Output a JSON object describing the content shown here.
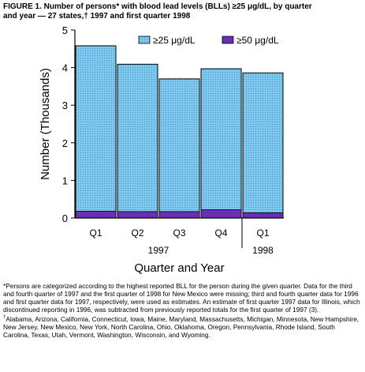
{
  "figure": {
    "title_line1": "FIGURE 1. Number of persons* with blood lead levels (BLLs) ≥25 μg/dL, by quarter",
    "title_line2": "and year — 27 states,† 1997 and first quarter 1998"
  },
  "chart_data": {
    "type": "bar",
    "stacked": true,
    "categories": [
      "Q1",
      "Q2",
      "Q3",
      "Q4",
      "Q1"
    ],
    "year_groups": [
      {
        "label": "1997",
        "categories": [
          "Q1",
          "Q2",
          "Q3",
          "Q4"
        ]
      },
      {
        "label": "1998",
        "categories": [
          "Q1"
        ]
      }
    ],
    "series": [
      {
        "name": "≥50 μg/dL",
        "values": [
          0.18,
          0.17,
          0.17,
          0.22,
          0.14
        ],
        "color": "#6a2fb5"
      },
      {
        "name": "≥25 μg/dL",
        "values": [
          4.58,
          4.09,
          3.7,
          3.97,
          3.86
        ],
        "color": "#7ec8ee"
      }
    ],
    "note": "≥25 values are total bar heights; ≥50 values are the bottom segment",
    "ylim": [
      0,
      5
    ],
    "yticks": [
      0,
      1,
      2,
      3,
      4,
      5
    ],
    "ylabel": "Number (Thousands)",
    "xlabel": "Quarter and Year",
    "legend_position": "top"
  },
  "footnotes": {
    "note1": "*Persons are categorized according to the highest reported BLL for the person during the given quarter. Data for the third and fourth quarter of 1997 and the first quarter of 1998 for New Mexico were missing; third and fourth quarter data for 1996 and first quarter data for 1997, respectively, were used as estimates. An estimate of first quarter 1997 data for Illinois, which discontinued reporting in 1996, was subtracted from previously reported totals for the first quarter of 1997 (3).",
    "note2_mark": "†",
    "note2": "Alabama, Arizona, California, Connecticut, Iowa, Maine, Maryland, Massachusetts, Michigan, Minnesota, New Hampshire, New Jersey, New Mexico, New York, North Carolina, Ohio, Oklahoma, Oregon, Pennsylvania, Rhode Island, South Carolina, Texas, Utah, Vermont, Washington, Wisconsin, and Wyoming."
  }
}
